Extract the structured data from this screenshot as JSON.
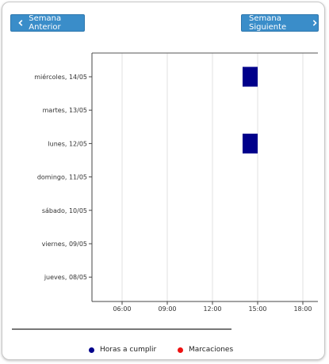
{
  "nav": {
    "prev_label": "Semana Anterior",
    "next_label": "Semana Siguiente"
  },
  "legend": [
    {
      "label": "Horas a cumplir",
      "color": "#00008b"
    },
    {
      "label": "Marcaciones",
      "color": "#ee1111"
    }
  ],
  "chart_data": {
    "type": "bar",
    "orientation": "horizontal-timeline",
    "categories": [
      "miércoles, 14/05",
      "martes, 13/05",
      "lunes, 12/05",
      "domingo, 11/05",
      "sábado, 10/05",
      "viernes, 09/05",
      "jueves, 08/05"
    ],
    "xticks": [
      "06:00",
      "09:00",
      "12:00",
      "15:00",
      "18:00"
    ],
    "xlim_hours": [
      4,
      19
    ],
    "grid": true,
    "series": [
      {
        "name": "Horas a cumplir",
        "color": "#00008b",
        "bars": [
          {
            "category": "miércoles, 14/05",
            "start_hour": 14.0,
            "end_hour": 15.0
          },
          {
            "category": "lunes, 12/05",
            "start_hour": 14.0,
            "end_hour": 15.0
          }
        ]
      },
      {
        "name": "Marcaciones",
        "color": "#ee1111",
        "bars": []
      }
    ]
  }
}
